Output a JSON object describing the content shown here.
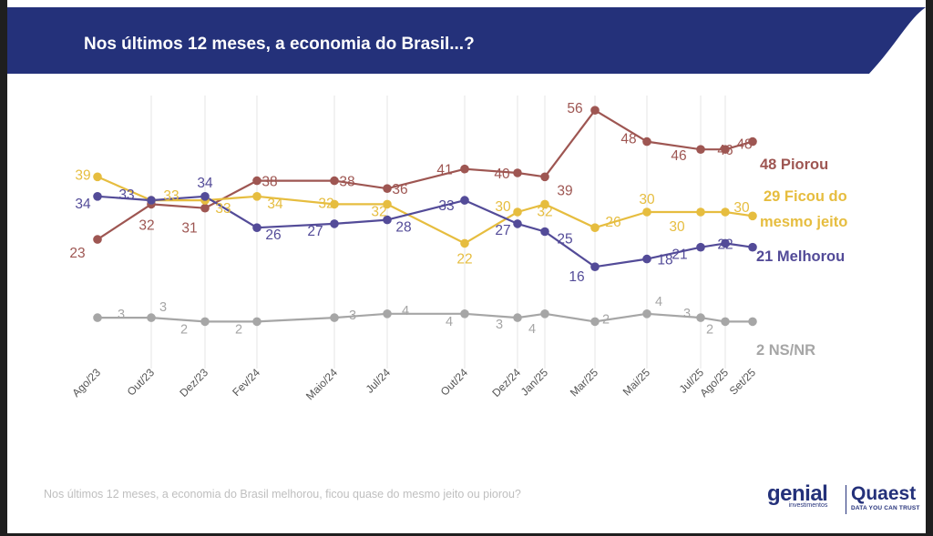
{
  "header": {
    "title": "Nos últimos 12 meses, a economia do Brasil...?"
  },
  "footer": {
    "question": "Nos últimos 12 meses, a economia do Brasil melhorou, ficou quase do mesmo jeito ou piorou?"
  },
  "logos": {
    "genial": {
      "name": "genial",
      "tagline": "investimentos"
    },
    "quaest": {
      "name": "Quaest",
      "tagline": "DATA YOU CAN TRUST"
    }
  },
  "colors": {
    "header_bg": "#24317a",
    "piorou": "#9e5652",
    "ficou": "#e6bd3f",
    "melhorou": "#534b98",
    "nsnr": "#a6a6a6"
  },
  "chart_data": {
    "type": "line",
    "title": "Nos últimos 12 meses, a economia do Brasil...?",
    "x": [
      "Ago/23",
      "Out/23",
      "Dez/23",
      "Fev/24",
      "Maio/24",
      "Jul/24",
      "Out/24",
      "Dez/24",
      "Jan/25",
      "Mar/25",
      "Mai/25",
      "Jul/25",
      "Ago/25",
      "Set/25"
    ],
    "series": [
      {
        "name": "Piorou",
        "end_label": "48 Piorou",
        "color": "#9e5652",
        "values": [
          23,
          32,
          31,
          38,
          38,
          36,
          41,
          40,
          39,
          56,
          48,
          46,
          46,
          48
        ]
      },
      {
        "name": "Ficou do mesmo jeito",
        "end_label": [
          "29 Ficou do",
          "mesmo jeito"
        ],
        "color": "#e6bd3f",
        "values": [
          39,
          33,
          33,
          34,
          32,
          32,
          22,
          30,
          32,
          26,
          30,
          30,
          30,
          29
        ]
      },
      {
        "name": "Melhorou",
        "end_label": "21 Melhorou",
        "color": "#534b98",
        "values": [
          34,
          33,
          34,
          26,
          27,
          28,
          33,
          27,
          25,
          16,
          18,
          21,
          22,
          21
        ]
      },
      {
        "name": "NS/NR",
        "end_label": "2 NS/NR",
        "color": "#a6a6a6",
        "values": [
          3,
          3,
          2,
          2,
          3,
          4,
          4,
          3,
          4,
          2,
          4,
          3,
          2,
          2
        ]
      }
    ],
    "grid": "vertical",
    "legend": "direct labels at right end of lines"
  }
}
